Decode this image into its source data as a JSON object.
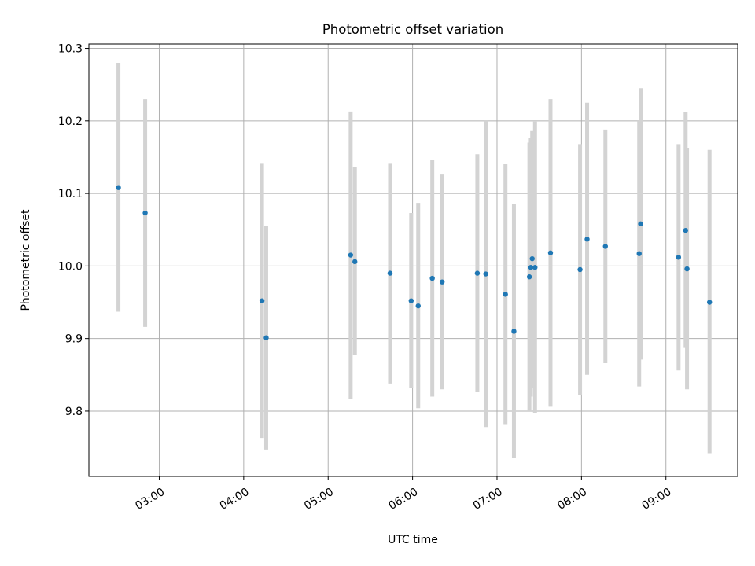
{
  "chart_data": {
    "type": "scatter",
    "title": "Photometric offset variation",
    "xlabel": "UTC time",
    "ylabel": "Photometric offset",
    "xlim": [
      "02:10",
      "09:51"
    ],
    "ylim": [
      9.71,
      10.306
    ],
    "x_ticks": [
      "03:00",
      "04:00",
      "05:00",
      "06:00",
      "07:00",
      "08:00",
      "09:00"
    ],
    "y_ticks": [
      "9.8",
      "9.9",
      "10.0",
      "10.1",
      "10.2",
      "10.3"
    ],
    "grid": true,
    "colors": {
      "points": "#1f77b4",
      "errorbars": "#d3d3d3"
    },
    "series": [
      {
        "points": [
          {
            "x": "02:31",
            "y": 10.108,
            "ylo": 9.937,
            "yhi": 10.28
          },
          {
            "x": "02:50",
            "y": 10.073,
            "ylo": 9.916,
            "yhi": 10.23
          },
          {
            "x": "04:13",
            "y": 9.952,
            "ylo": 9.763,
            "yhi": 10.142
          },
          {
            "x": "04:16",
            "y": 9.901,
            "ylo": 9.747,
            "yhi": 10.055
          },
          {
            "x": "05:16",
            "y": 10.015,
            "ylo": 9.817,
            "yhi": 10.213
          },
          {
            "x": "05:19",
            "y": 10.006,
            "ylo": 9.877,
            "yhi": 10.136
          },
          {
            "x": "05:44",
            "y": 9.99,
            "ylo": 9.838,
            "yhi": 10.142
          },
          {
            "x": "05:59",
            "y": 9.952,
            "ylo": 9.832,
            "yhi": 10.073
          },
          {
            "x": "06:04",
            "y": 9.945,
            "ylo": 9.804,
            "yhi": 10.087
          },
          {
            "x": "06:14",
            "y": 9.983,
            "ylo": 9.82,
            "yhi": 10.146
          },
          {
            "x": "06:21",
            "y": 9.978,
            "ylo": 9.83,
            "yhi": 10.127
          },
          {
            "x": "06:46",
            "y": 9.99,
            "ylo": 9.826,
            "yhi": 10.154
          },
          {
            "x": "06:52",
            "y": 9.989,
            "ylo": 9.778,
            "yhi": 10.2
          },
          {
            "x": "07:06",
            "y": 9.961,
            "ylo": 9.781,
            "yhi": 10.141
          },
          {
            "x": "07:12",
            "y": 9.91,
            "ylo": 9.736,
            "yhi": 10.085
          },
          {
            "x": "07:23",
            "y": 9.985,
            "ylo": 9.8,
            "yhi": 10.17
          },
          {
            "x": "07:24",
            "y": 9.998,
            "ylo": 9.82,
            "yhi": 10.176
          },
          {
            "x": "07:25",
            "y": 10.01,
            "ylo": 9.832,
            "yhi": 10.186
          },
          {
            "x": "07:27",
            "y": 9.998,
            "ylo": 9.797,
            "yhi": 10.199
          },
          {
            "x": "07:38",
            "y": 10.018,
            "ylo": 9.806,
            "yhi": 10.23
          },
          {
            "x": "07:59",
            "y": 9.995,
            "ylo": 9.822,
            "yhi": 10.168
          },
          {
            "x": "08:04",
            "y": 10.037,
            "ylo": 9.85,
            "yhi": 10.225
          },
          {
            "x": "08:17",
            "y": 10.027,
            "ylo": 9.866,
            "yhi": 10.188
          },
          {
            "x": "08:41",
            "y": 10.017,
            "ylo": 9.834,
            "yhi": 10.2
          },
          {
            "x": "08:42",
            "y": 10.058,
            "ylo": 9.871,
            "yhi": 10.245
          },
          {
            "x": "09:09",
            "y": 10.012,
            "ylo": 9.856,
            "yhi": 10.168
          },
          {
            "x": "09:14",
            "y": 10.049,
            "ylo": 9.887,
            "yhi": 10.212
          },
          {
            "x": "09:15",
            "y": 9.996,
            "ylo": 9.83,
            "yhi": 10.163
          },
          {
            "x": "09:31",
            "y": 9.95,
            "ylo": 9.742,
            "yhi": 10.16
          }
        ]
      }
    ]
  }
}
